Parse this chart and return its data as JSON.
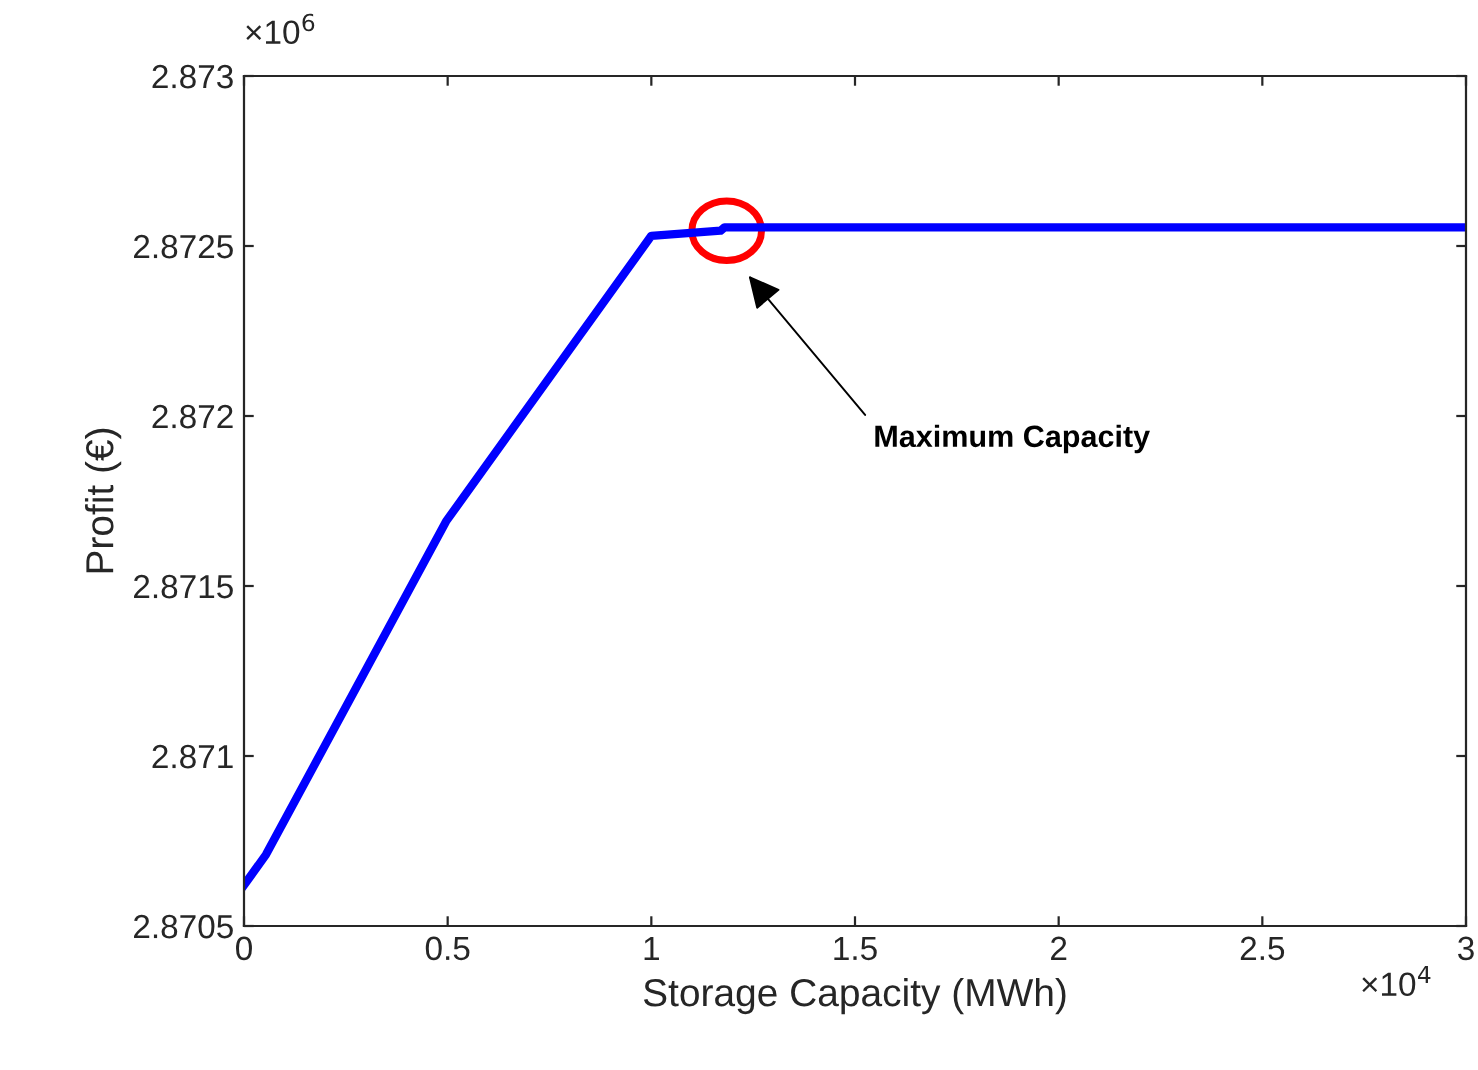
{
  "chart_data": {
    "type": "line",
    "xlabel": "Storage Capacity (MWh)",
    "ylabel": "Profit (€)",
    "x": [
      0,
      0.054,
      0.496,
      1.0,
      1.17,
      1.18,
      3.0
    ],
    "series": [
      {
        "color": "#0000ff",
        "values": [
          2.87062,
          2.87071,
          2.87169,
          2.87253,
          2.872545,
          2.872555,
          2.872555
        ]
      }
    ],
    "xlim": [
      0,
      3
    ],
    "ylim": [
      2.8705,
      2.873
    ],
    "xticks": [
      0,
      0.5,
      1,
      1.5,
      2,
      2.5,
      3
    ],
    "yticks": [
      2.8705,
      2.871,
      2.8715,
      2.872,
      2.8725,
      2.873
    ],
    "annotations": [
      "Maximum Capacity",
      "×10$^{6}$",
      "×10$^{4}$"
    ],
    "grid": false,
    "legend": false,
    "marker": "none",
    "line_style": "solid"
  }
}
